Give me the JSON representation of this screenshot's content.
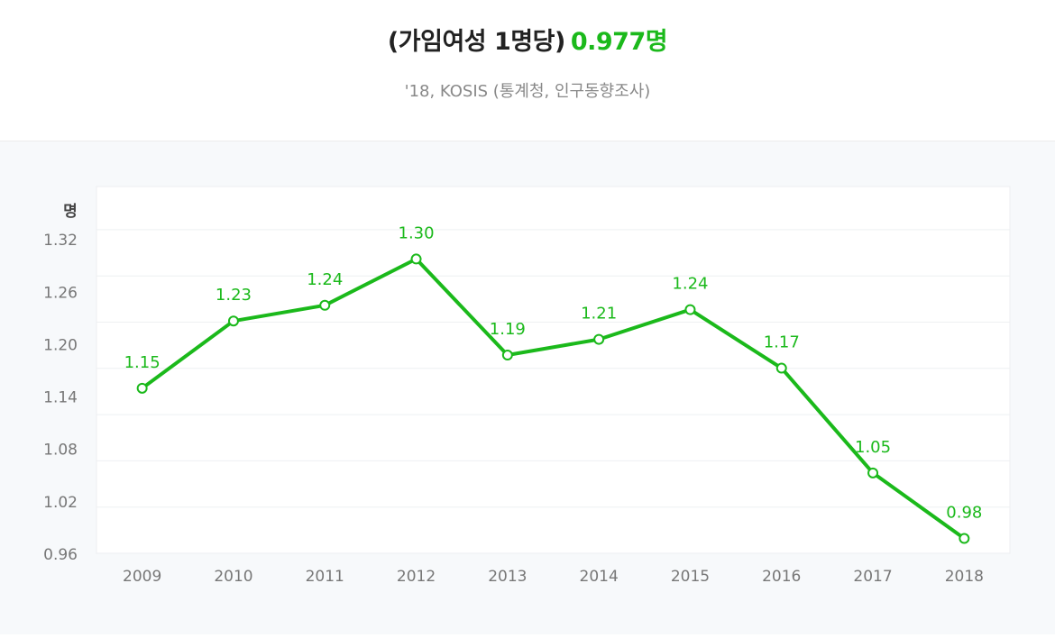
{
  "header": {
    "title": "(가임여성 1명당)",
    "value": "0.977명",
    "subtitle": "'18, KOSIS (통계청, 인구동향조사)"
  },
  "colors": {
    "accent": "#1bb91b",
    "title_text": "#222222",
    "subtitle_text": "#888888",
    "axis_text": "#777777",
    "grid": "#eef0f2",
    "panel_bg": "#f7f9fb",
    "plot_bg": "#ffffff"
  },
  "chart_data": {
    "type": "line",
    "ylabel": "명",
    "ylim": [
      0.96,
      1.38
    ],
    "yticks": [
      "0.96",
      "1.02",
      "1.08",
      "1.14",
      "1.20",
      "1.26",
      "1.32"
    ],
    "categories": [
      "2009",
      "2010",
      "2011",
      "2012",
      "2013",
      "2014",
      "2015",
      "2016",
      "2017",
      "2018"
    ],
    "values": [
      1.149,
      1.226,
      1.244,
      1.297,
      1.187,
      1.205,
      1.239,
      1.172,
      1.052,
      0.977
    ],
    "value_labels": [
      "1.15",
      "1.23",
      "1.24",
      "1.30",
      "1.19",
      "1.21",
      "1.24",
      "1.17",
      "1.05",
      "0.98"
    ],
    "grid": true,
    "legend": "none"
  }
}
